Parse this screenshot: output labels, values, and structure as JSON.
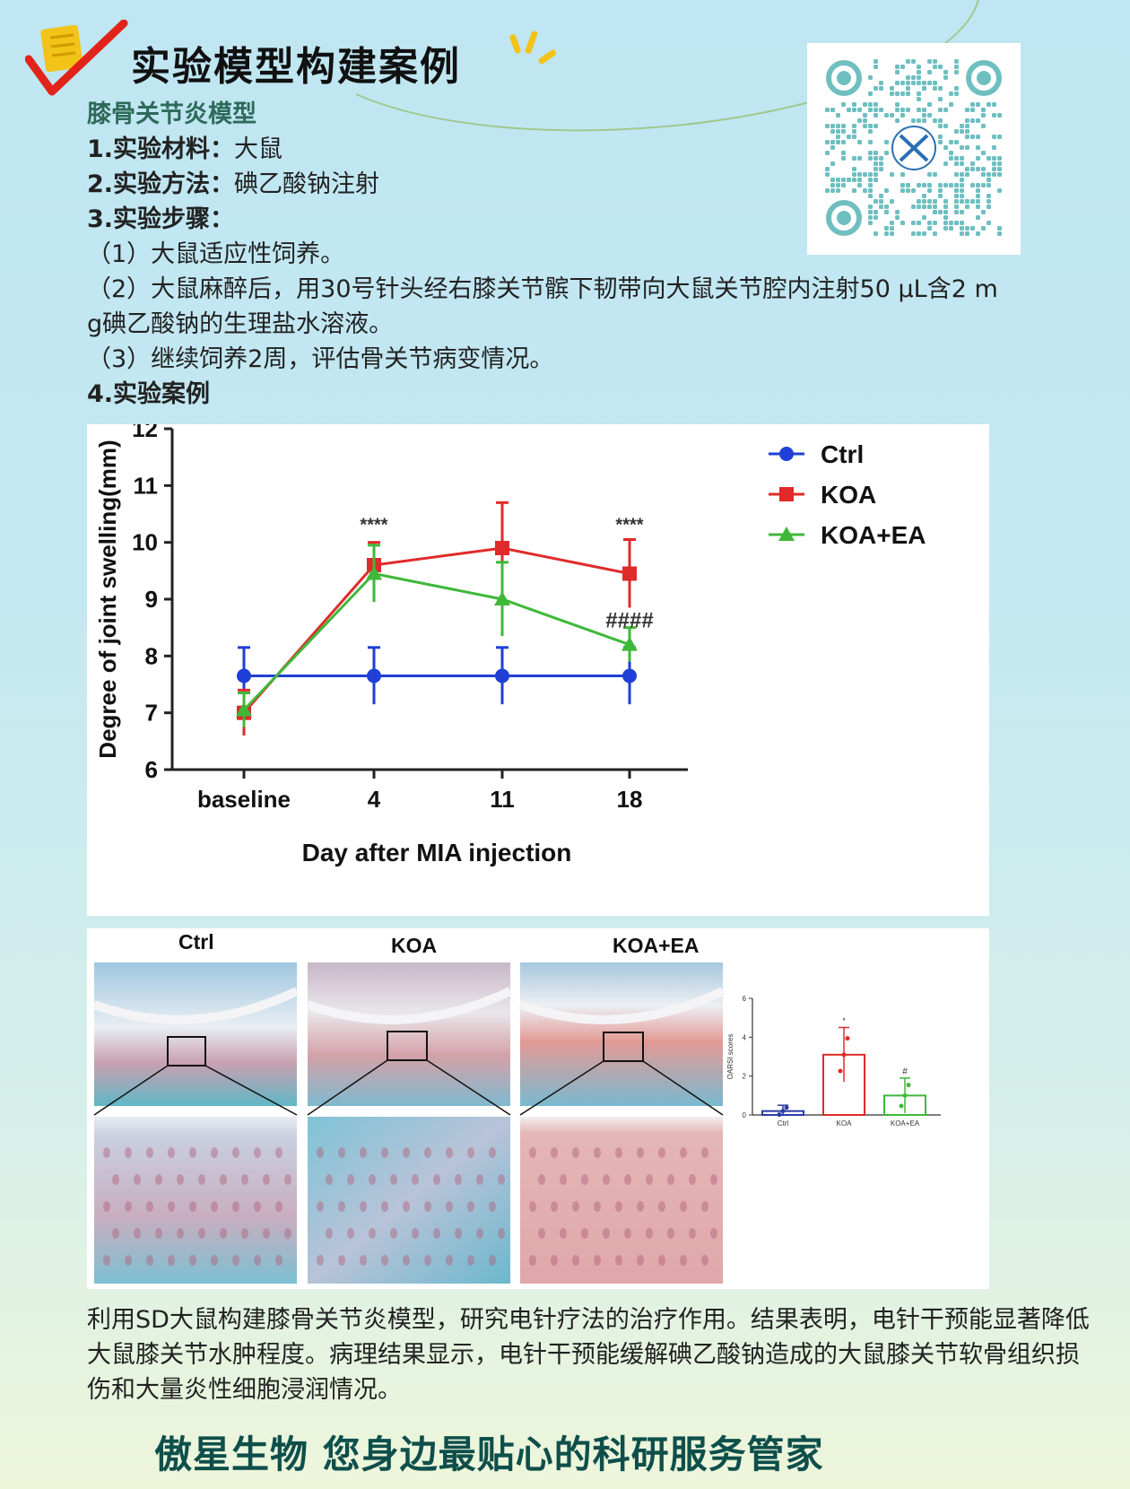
{
  "header": {
    "title": "实验模型构建案例"
  },
  "section": {
    "subtitle": "膝骨关节炎模型",
    "material_label": "1.实验材料：",
    "material_value": "大鼠",
    "method_label": "2.实验方法：",
    "method_value": "碘乙酸钠注射",
    "steps_label": "3.实验步骤：",
    "step1": "（1）大鼠适应性饲养。",
    "step2a": "（2）大鼠麻醉后，用30号针头经右膝关节髌下韧带向大鼠关节腔内注射50 μL含2 m",
    "step2b": "g碘乙酸钠的生理盐水溶液。",
    "step3": "（3）继续饲养2周，评估骨关节病变情况。",
    "case_label": "4.实验案例"
  },
  "chart_data": {
    "type": "line",
    "categories": [
      "baseline",
      "4",
      "11",
      "18"
    ],
    "xlabel": "Day after MIA injection",
    "ylabel": "Degree of joint swelling(mm)",
    "ylim": [
      6,
      12
    ],
    "yticks": [
      "6",
      "7",
      "8",
      "9",
      "10",
      "11",
      "12"
    ],
    "series": [
      {
        "name": "Ctrl",
        "color": "#1f3fd6",
        "marker": "circle",
        "values": [
          7.65,
          7.65,
          7.65,
          7.65
        ],
        "err": [
          0.5,
          0.5,
          0.5,
          0.5
        ]
      },
      {
        "name": "KOA",
        "color": "#e02a2a",
        "marker": "square",
        "values": [
          7.0,
          9.6,
          9.9,
          9.45
        ],
        "err": [
          0.4,
          0.4,
          0.8,
          0.6
        ]
      },
      {
        "name": "KOA+EA",
        "color": "#3fb83a",
        "marker": "triangle",
        "values": [
          7.05,
          9.45,
          9.0,
          8.2
        ],
        "err": [
          0.3,
          0.5,
          0.65,
          0.3
        ]
      }
    ],
    "annotations": [
      {
        "category": "4",
        "text": "****",
        "y": 10.3
      },
      {
        "category": "18",
        "text": "****",
        "y": 10.3
      },
      {
        "category": "18",
        "text": "####",
        "y": 8.6
      }
    ],
    "legend_position": "top-right"
  },
  "histology": {
    "labels": [
      "Ctrl",
      "KOA",
      "KOA+EA"
    ],
    "bar_chart": {
      "type": "bar",
      "ylabel": "OARSI scores",
      "categories": [
        "Ctrl",
        "KOA",
        "KOA+EA"
      ],
      "values": [
        0.2,
        3.1,
        1.0
      ],
      "err": [
        0.3,
        1.4,
        0.9
      ],
      "colors": [
        "#2b3ca8",
        "#e02a2a",
        "#3fb83a"
      ],
      "ylim": [
        0,
        6
      ],
      "yticks": [
        "0",
        "2",
        "4",
        "6"
      ],
      "annotations": [
        "*",
        "#"
      ]
    }
  },
  "caption": {
    "text": "利用SD大鼠构建膝骨关节炎模型，研究电针疗法的治疗作用。结果表明，电针干预能显著降低大鼠膝关节水肿程度。病理结果显示，电针干预能缓解碘乙酸钠造成的大鼠膝关节软骨组织损伤和大量炎性细胞浸润情况。"
  },
  "footer": {
    "slogan": "傲星生物 您身边最贴心的科研服务管家"
  }
}
